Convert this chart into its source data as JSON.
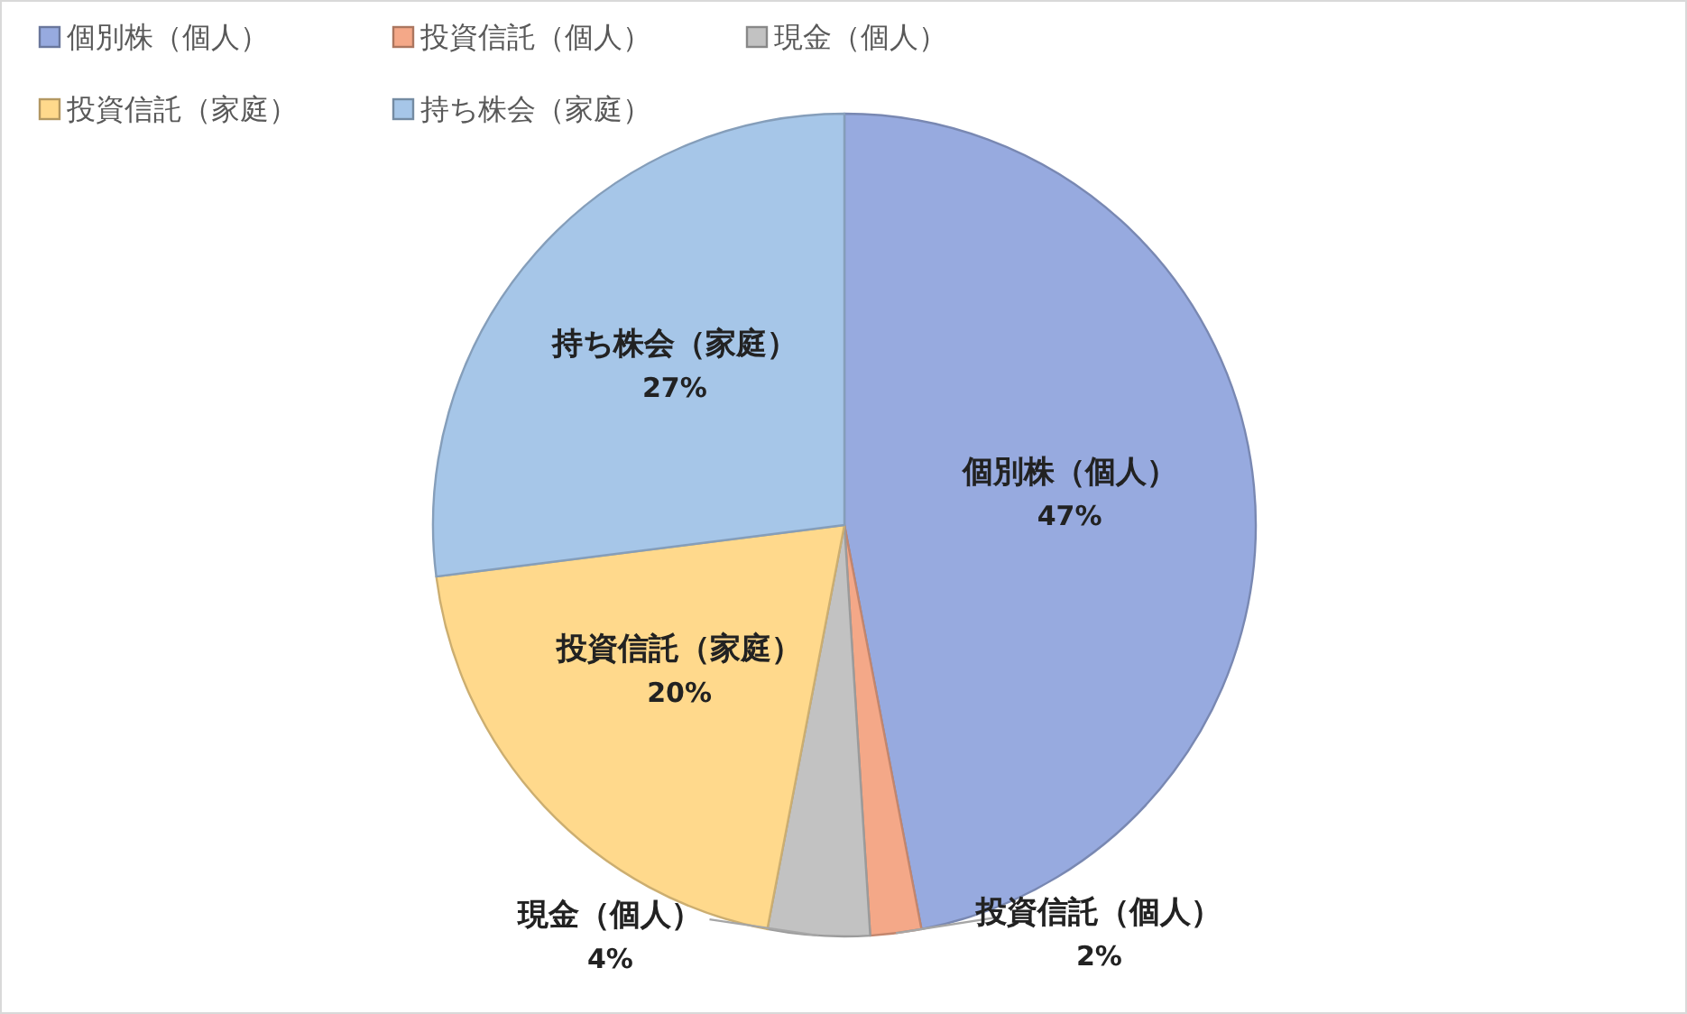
{
  "chart_data": {
    "type": "pie",
    "categories": [
      "個別株（個人）",
      "投資信託（個人）",
      "現金（個人）",
      "投資信託（家庭）",
      "持ち株会（家庭）"
    ],
    "values": [
      47,
      2,
      4,
      20,
      27
    ],
    "value_labels": [
      "47%",
      "2%",
      "4%",
      "20%",
      "27%"
    ],
    "colors": [
      "#97aadf",
      "#f4a888",
      "#c2c2c2",
      "#ffd98c",
      "#a6c6e8"
    ],
    "legend": "top left"
  }
}
